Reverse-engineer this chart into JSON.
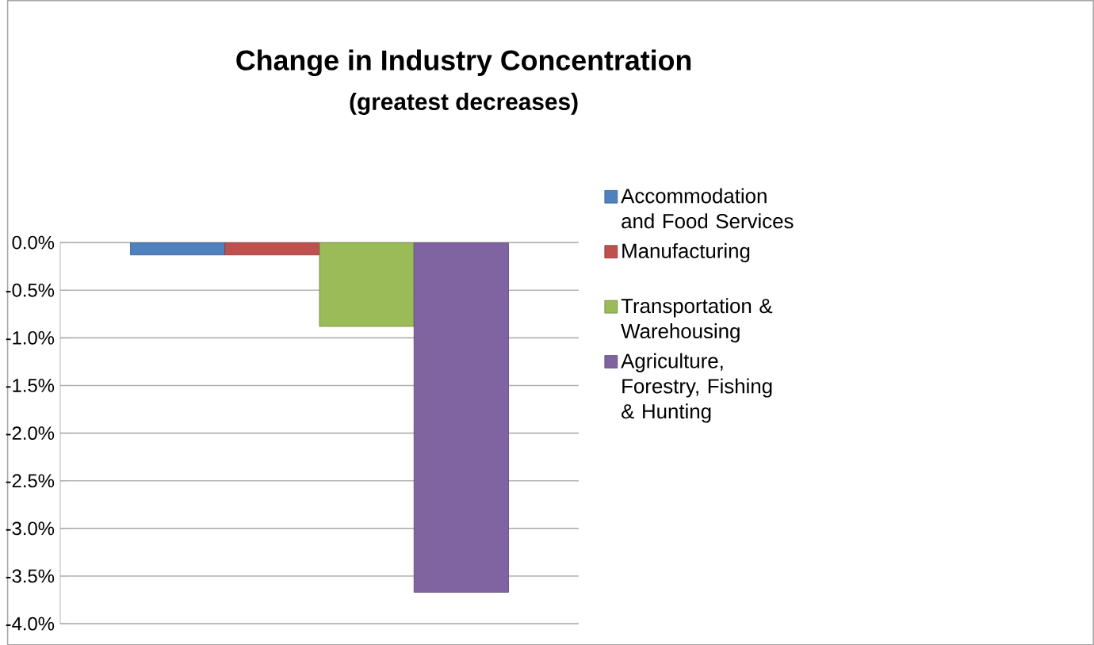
{
  "chart_data": {
    "type": "bar",
    "title": "Change in Industry Concentration",
    "subtitle": "(greatest decreases)",
    "categories": [
      null
    ],
    "series": [
      {
        "name": "Accommodation and Food Services",
        "color": "#4f81bd",
        "values": [
          -0.13
        ]
      },
      {
        "name": "Manufacturing",
        "color": "#c0504d",
        "values": [
          -0.13
        ]
      },
      {
        "name": "Transportation & Warehousing",
        "color": "#9bbb59",
        "values": [
          -0.88
        ]
      },
      {
        "name": "Agriculture, Forestry, Fishing & Hunting",
        "color": "#8064a2",
        "values": [
          -3.67
        ]
      }
    ],
    "ylim": [
      -4.0,
      0.0
    ],
    "yticks": [
      {
        "value": 0,
        "label": "0.0%"
      },
      {
        "value": -0.5,
        "label": "-0.5%"
      },
      {
        "value": -1.0,
        "label": "-1.0%"
      },
      {
        "value": -1.5,
        "label": "-1.5%"
      },
      {
        "value": -2.0,
        "label": "-2.0%"
      },
      {
        "value": -2.5,
        "label": "-2.5%"
      },
      {
        "value": -3.0,
        "label": "-3.0%"
      },
      {
        "value": -3.5,
        "label": "-3.5%"
      },
      {
        "value": -4.0,
        "label": "-4.0%"
      }
    ],
    "grid": "y",
    "legend": "right"
  }
}
